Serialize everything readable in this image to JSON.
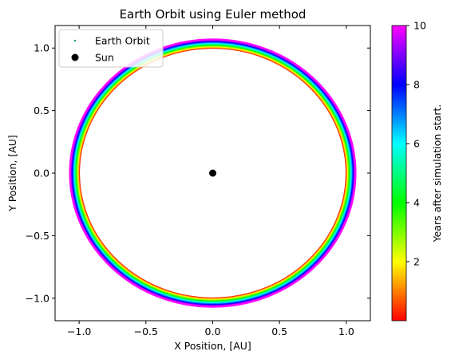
{
  "chart_data": {
    "type": "scatter",
    "title": "Earth Orbit using Euler method",
    "xlabel": "X Position, [AU]",
    "ylabel": "Y Position, [AU]",
    "xlim": [
      -1.18,
      1.18
    ],
    "ylim": [
      -1.18,
      1.18
    ],
    "x_ticks": [
      -1.0,
      -0.5,
      0.0,
      0.5,
      1.0
    ],
    "x_tick_labels": [
      "−1.0",
      "−0.5",
      "0.0",
      "0.5",
      "1.0"
    ],
    "y_ticks": [
      -1.0,
      -0.5,
      0.0,
      0.5,
      1.0
    ],
    "y_tick_labels": [
      "−1.0",
      "−0.5",
      "0.0",
      "0.5",
      "1.0"
    ],
    "grid": false,
    "legend": {
      "position": "top-left",
      "entries": [
        {
          "label": "Earth Orbit",
          "marker": "small-dot",
          "color": "#1a9a8a"
        },
        {
          "label": "Sun",
          "marker": "large-dot",
          "color": "#000000"
        }
      ]
    },
    "sun": {
      "x": 0.0,
      "y": 0.0
    },
    "orbit": {
      "description_series": "Earth Orbit",
      "start_radius": 1.0,
      "end_radius": 1.07,
      "years": 10,
      "color_by": "years after simulation start"
    },
    "colorbar": {
      "label": "Years after simulation start.",
      "min": 0,
      "max": 10,
      "ticks": [
        2,
        4,
        6,
        8,
        10
      ],
      "tick_labels": [
        "2",
        "4",
        "6",
        "8",
        "10"
      ],
      "colormap": "gist_rainbow_r",
      "colors": [
        "#ff0000",
        "#ffff00",
        "#00ff00",
        "#00ffff",
        "#0000ff",
        "#ff00ff"
      ]
    }
  }
}
